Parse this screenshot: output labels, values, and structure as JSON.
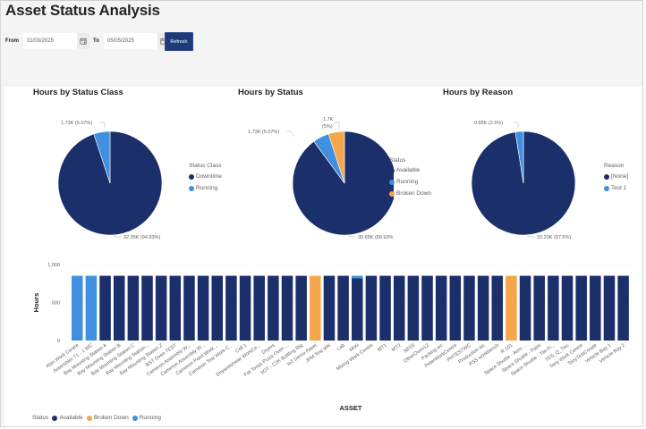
{
  "page": {
    "title": "Asset Status Analysis"
  },
  "filters": {
    "from_label": "From",
    "from_value": "31/03/2025",
    "to_label": "To",
    "to_value": "05/05/2025",
    "refresh_label": "Refresh"
  },
  "colors": {
    "available": "#1b2f6b",
    "running": "#418fe0",
    "broken_down": "#f4a64a",
    "none": "#1b2f6b",
    "test1": "#418fe0"
  },
  "chart_data": [
    {
      "type": "pie",
      "title": "Hours by Status Class",
      "legend_title": "Status Class",
      "legend_position": "right",
      "slices": [
        {
          "label": "Downtime",
          "value": 32350,
          "percent": 94.93,
          "data_label": "32.35K (94.93%)",
          "color": "#1b2f6b"
        },
        {
          "label": "Running",
          "value": 1730,
          "percent": 5.07,
          "data_label": "1.73K (5.07%)",
          "color": "#418fe0"
        }
      ]
    },
    {
      "type": "pie",
      "title": "Hours by Status",
      "legend_title": "Status",
      "legend_position": "right",
      "slices": [
        {
          "label": "Available",
          "value": 30650,
          "percent": 89.93,
          "data_label": "30.65K (89.93%)",
          "color": "#1b2f6b"
        },
        {
          "label": "Running",
          "value": 1730,
          "percent": 5.07,
          "data_label": "1.73K (5.07%)",
          "color": "#418fe0"
        },
        {
          "label": "Broken Down",
          "value": 1700,
          "percent": 5,
          "data_label_line1": "1.7K",
          "data_label_line2": "(5%)",
          "color": "#f4a64a"
        }
      ]
    },
    {
      "type": "pie",
      "title": "Hours by Reason",
      "legend_title": "Reason",
      "legend_position": "right",
      "slices": [
        {
          "label": "[None]",
          "value": 33230,
          "percent": 97.5,
          "data_label": "33.23K (97.5%)",
          "color": "#1b2f6b"
        },
        {
          "label": "Test 1",
          "value": 850,
          "percent": 2.5,
          "data_label": "0.85K (2.5%)",
          "color": "#418fe0"
        }
      ]
    },
    {
      "type": "bar",
      "stacked": true,
      "title": "",
      "xlabel": "ASSET",
      "ylabel": "Hours",
      "ylim": [
        0,
        1000
      ],
      "yticks": [
        "0",
        "500",
        "1,000"
      ],
      "grid": true,
      "legend_title": "Status",
      "legend_position": "bottom-left",
      "legend": [
        {
          "label": "Available",
          "color": "#1b2f6b"
        },
        {
          "label": "Broken Down",
          "color": "#f4a64a"
        },
        {
          "label": "Running",
          "color": "#418fe0"
        }
      ],
      "categories": [
        "Alan Work Centre",
        "Assembler T1 - 1 WC",
        "Bay Mounting Station A",
        "Bay Mounting Station B",
        "Bay Mounting Station C",
        "Bay Mounting Station...",
        "Bay Mounting Station Z",
        "BST Oven TEST",
        "Cameron Assembly W...",
        "Cameron Assembly W...",
        "Cameron Paint Work ...",
        "Cameron Test Work C...",
        "Cell 1",
        "Dnyaneshwar WorkCe...",
        "Dryers",
        "Fat Tonys Pizza Oven ...",
        "IIOT - C2K Bottling Rig",
        "IoT Demo Asset",
        "JPM Test WK",
        "Lab",
        "MIXI",
        "Mixing Work Centre",
        "MT1",
        "MT2",
        "NF03",
        "OtherOven12",
        "Packing wc",
        "PeterWorkCentre",
        "PHTESTWC",
        "Production wc",
        "PSS workbench",
        "R-101",
        "Space Shuttle - Aero ...",
        "Space Shuttle - Paint",
        "Space Shuttle - Tile Fi...",
        "TES_Q_Twc",
        "Tony Work Centre",
        "TonyTestCreate",
        "Vehicle Bay 1",
        "Vehicle Bay 2"
      ],
      "series": [
        {
          "name": "Available",
          "color": "#1b2f6b",
          "values": [
            0,
            0,
            852,
            852,
            852,
            852,
            852,
            852,
            852,
            852,
            852,
            852,
            852,
            852,
            852,
            852,
            852,
            0,
            852,
            852,
            818,
            852,
            852,
            852,
            852,
            852,
            852,
            852,
            852,
            852,
            852,
            0,
            852,
            852,
            852,
            852,
            852,
            852,
            852,
            852
          ]
        },
        {
          "name": "Broken Down",
          "color": "#f4a64a",
          "values": [
            0,
            0,
            0,
            0,
            0,
            0,
            0,
            0,
            0,
            0,
            0,
            0,
            0,
            0,
            0,
            0,
            0,
            852,
            0,
            0,
            0,
            0,
            0,
            0,
            0,
            0,
            0,
            0,
            0,
            0,
            0,
            852,
            0,
            0,
            0,
            0,
            0,
            0,
            0,
            0
          ]
        },
        {
          "name": "Running",
          "color": "#418fe0",
          "values": [
            852,
            852,
            0,
            0,
            0,
            0,
            0,
            0,
            0,
            0,
            0,
            0,
            0,
            0,
            0,
            0,
            0,
            0,
            0,
            0,
            34,
            0,
            0,
            0,
            0,
            0,
            0,
            0,
            0,
            0,
            0,
            0,
            0,
            0,
            0,
            0,
            0,
            0,
            0,
            0
          ]
        }
      ]
    }
  ]
}
